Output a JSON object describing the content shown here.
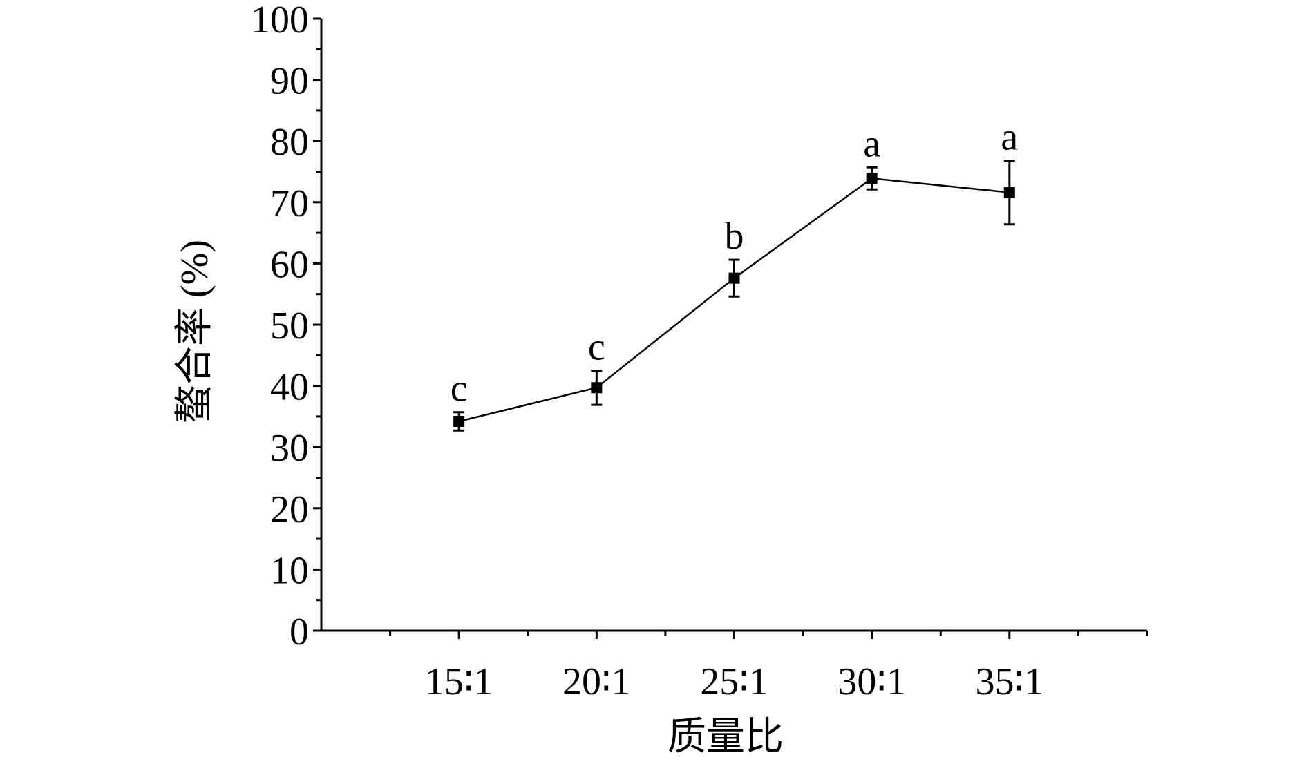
{
  "chart_data": {
    "type": "line",
    "categories": [
      "15∶1",
      "20∶1",
      "25∶1",
      "30∶1",
      "35∶1"
    ],
    "series": [
      {
        "values": [
          34.2,
          39.7,
          57.6,
          73.9,
          71.6
        ],
        "errors": [
          1.5,
          2.8,
          3.0,
          1.8,
          5.2
        ],
        "labels": [
          "c",
          "c",
          "b",
          "a",
          "a"
        ],
        "color": "#000000",
        "marker": "square"
      }
    ],
    "xlabel": "质量比",
    "ylabel": "螯合率 (%)",
    "ylim": [
      0,
      100
    ],
    "yticks": [
      0,
      10,
      20,
      30,
      40,
      50,
      60,
      70,
      80,
      90,
      100
    ],
    "grid": false,
    "legend": "none"
  }
}
